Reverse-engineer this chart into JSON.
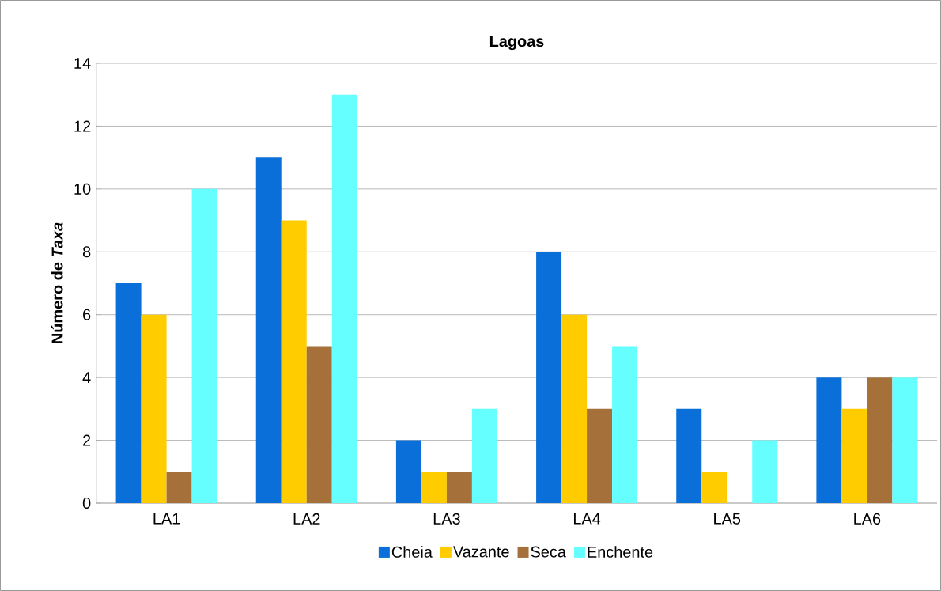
{
  "chart_data": {
    "type": "bar",
    "title": "Lagoas",
    "ylabel": "Número de *Taxa*",
    "categories": [
      "LA1",
      "LA2",
      "LA3",
      "LA4",
      "LA5",
      "LA6"
    ],
    "series": [
      {
        "name": "Cheia",
        "color": "#0a6fd8",
        "values": [
          7,
          11,
          2,
          8,
          3,
          4
        ]
      },
      {
        "name": "Vazante",
        "color": "#ffcc00",
        "values": [
          6,
          9,
          1,
          6,
          1,
          3
        ]
      },
      {
        "name": "Seca",
        "color": "#a5703a",
        "values": [
          1,
          5,
          1,
          3,
          0,
          4
        ]
      },
      {
        "name": "Enchente",
        "color": "#66ffff",
        "values": [
          10,
          13,
          3,
          5,
          2,
          4
        ]
      }
    ],
    "ylim": [
      0,
      14
    ],
    "yticks": [
      0,
      2,
      4,
      6,
      8,
      10,
      12,
      14
    ],
    "grid": "y",
    "legend": "bottom"
  }
}
